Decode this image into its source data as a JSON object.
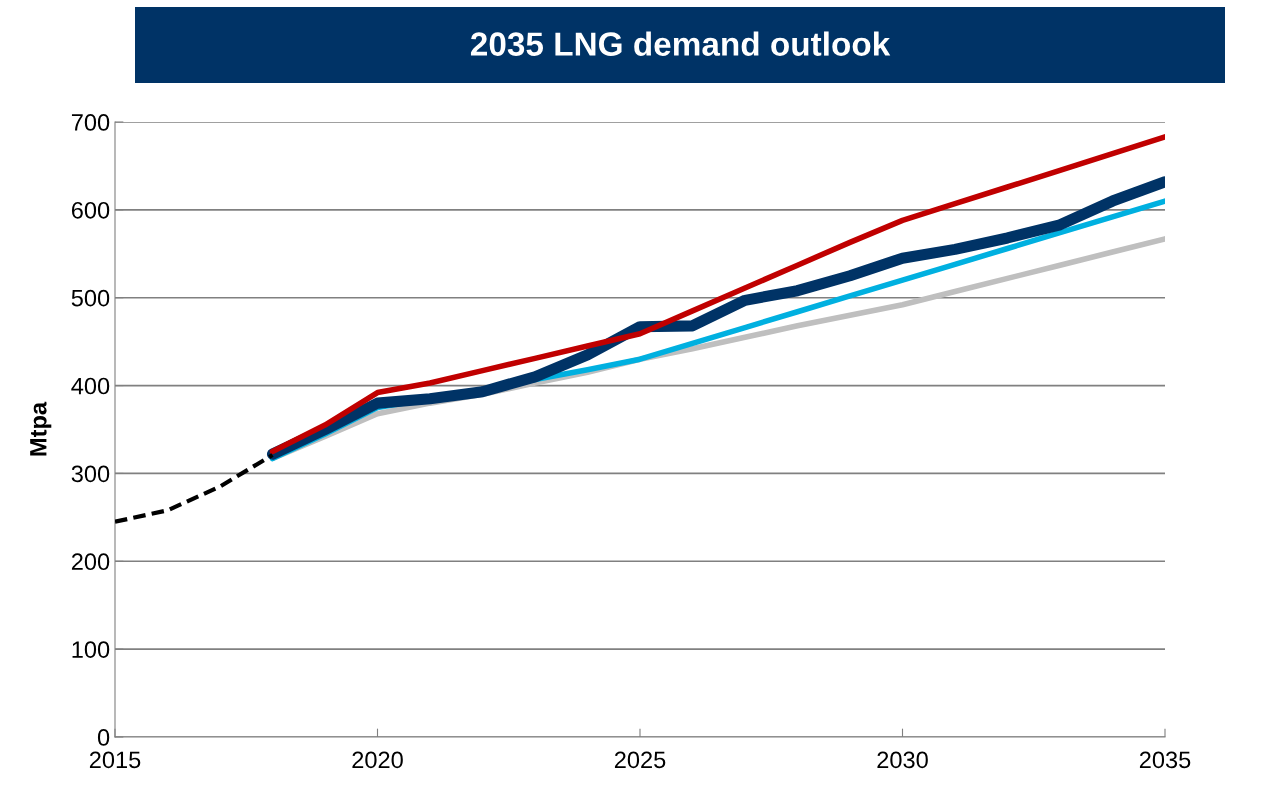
{
  "chart_data": {
    "type": "line",
    "title": "2035 LNG demand outlook",
    "ylabel": "Mtpa",
    "xlim": [
      2015,
      2035
    ],
    "xticks": [
      2015,
      2020,
      2025,
      2030,
      2035
    ],
    "ylim": [
      0,
      700
    ],
    "yticks": [
      0,
      100,
      200,
      300,
      400,
      500,
      600,
      700
    ],
    "grid": "y",
    "marker": "none",
    "series": [
      {
        "color": "#bfbfbf",
        "x": [
          2018,
          2019,
          2020,
          2021,
          2022,
          2023,
          2024,
          2025,
          2026,
          2027,
          2028,
          2029,
          2030,
          2031,
          2032,
          2033,
          2034,
          2035
        ],
        "values": [
          317,
          342,
          368,
          380,
          390,
          403,
          415,
          430,
          442,
          455,
          468,
          480,
          492,
          507,
          522,
          537,
          552,
          567
        ]
      },
      {
        "color": "#00b0e0",
        "x": [
          2018,
          2019,
          2020,
          2021,
          2022,
          2023,
          2024,
          2025,
          2026,
          2027,
          2028,
          2029,
          2030,
          2031,
          2032,
          2033,
          2034,
          2035
        ],
        "values": [
          317,
          345,
          375,
          385,
          395,
          407,
          418,
          430,
          448,
          466,
          484,
          502,
          520,
          538,
          556,
          574,
          592,
          610
        ]
      },
      {
        "color": "#003366",
        "x": [
          2018,
          2019,
          2020,
          2021,
          2022,
          2023,
          2024,
          2025,
          2026,
          2027,
          2028,
          2029,
          2030,
          2031,
          2032,
          2033,
          2034,
          2035
        ],
        "values": [
          322,
          350,
          380,
          385,
          393,
          410,
          435,
          467,
          468,
          497,
          508,
          525,
          545,
          555,
          568,
          583,
          610,
          632
        ]
      },
      {
        "color": "#c00000",
        "x": [
          2018,
          2019,
          2020,
          2021,
          2022,
          2023,
          2024,
          2025,
          2026,
          2027,
          2028,
          2029,
          2030,
          2031,
          2032,
          2033,
          2034,
          2035
        ],
        "values": [
          325,
          355,
          392,
          403,
          417,
          431,
          445,
          459,
          485,
          511,
          537,
          563,
          588,
          607,
          626,
          645,
          664,
          683
        ]
      },
      {
        "color": "#000000",
        "line_style": "dashed",
        "x": [
          2015,
          2016,
          2017,
          2018
        ],
        "values": [
          245,
          258,
          285,
          321
        ]
      }
    ]
  }
}
